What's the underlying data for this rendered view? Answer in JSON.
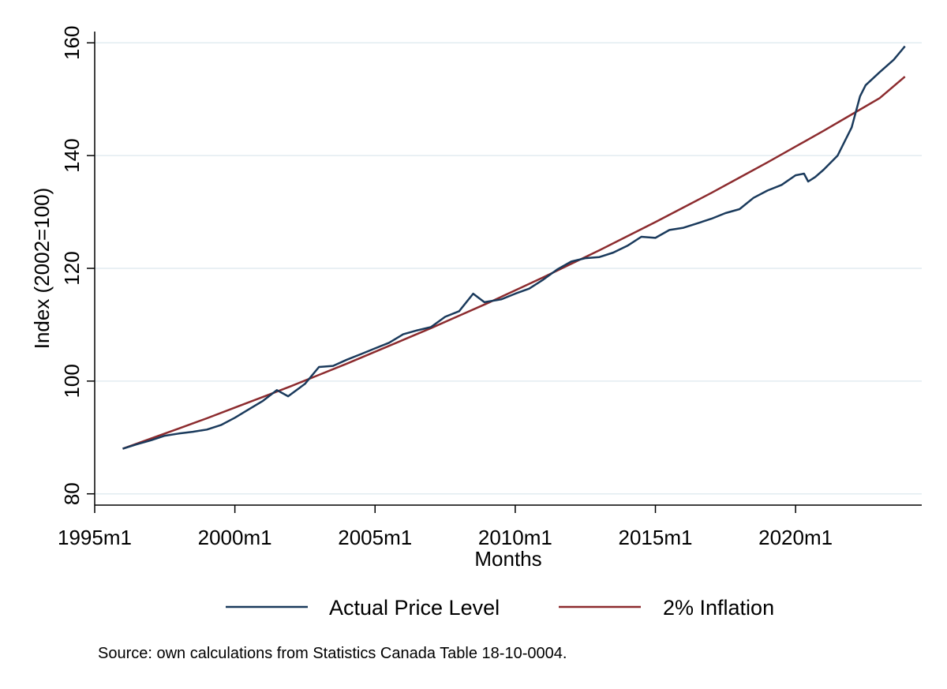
{
  "chart_data": {
    "type": "line",
    "xlabel": "Months",
    "ylabel": "Index (2002=100)",
    "xlim": [
      1995.0,
      2024.5
    ],
    "ylim": [
      78,
      162
    ],
    "x_ticks": [
      {
        "value": 1995.0,
        "label": "1995m1"
      },
      {
        "value": 2000.0,
        "label": "2000m1"
      },
      {
        "value": 2005.0,
        "label": "2005m1"
      },
      {
        "value": 2010.0,
        "label": "2010m1"
      },
      {
        "value": 2015.0,
        "label": "2015m1"
      },
      {
        "value": 2020.0,
        "label": "2020m1"
      }
    ],
    "y_ticks": [
      {
        "value": 80,
        "label": "80"
      },
      {
        "value": 100,
        "label": "100"
      },
      {
        "value": 120,
        "label": "120"
      },
      {
        "value": 140,
        "label": "140"
      },
      {
        "value": 160,
        "label": "160"
      }
    ],
    "grid": true,
    "legend_position": "bottom",
    "series": [
      {
        "name": "Actual Price Level",
        "color": "#1a3a5c",
        "points": [
          [
            1996.0,
            88.0
          ],
          [
            1996.5,
            88.8
          ],
          [
            1997.0,
            89.5
          ],
          [
            1997.5,
            90.3
          ],
          [
            1998.0,
            90.7
          ],
          [
            1998.5,
            91.0
          ],
          [
            1999.0,
            91.4
          ],
          [
            1999.5,
            92.2
          ],
          [
            2000.0,
            93.5
          ],
          [
            2000.5,
            95.0
          ],
          [
            2001.0,
            96.5
          ],
          [
            2001.5,
            98.4
          ],
          [
            2001.9,
            97.3
          ],
          [
            2002.5,
            99.5
          ],
          [
            2003.0,
            102.5
          ],
          [
            2003.5,
            102.7
          ],
          [
            2004.0,
            103.8
          ],
          [
            2004.5,
            104.8
          ],
          [
            2005.0,
            105.8
          ],
          [
            2005.5,
            106.8
          ],
          [
            2006.0,
            108.3
          ],
          [
            2006.5,
            109.0
          ],
          [
            2007.0,
            109.6
          ],
          [
            2007.5,
            111.4
          ],
          [
            2008.0,
            112.4
          ],
          [
            2008.5,
            115.5
          ],
          [
            2008.9,
            114.0
          ],
          [
            2009.5,
            114.5
          ],
          [
            2010.0,
            115.5
          ],
          [
            2010.5,
            116.4
          ],
          [
            2011.0,
            118.0
          ],
          [
            2011.5,
            119.8
          ],
          [
            2012.0,
            121.2
          ],
          [
            2012.5,
            121.8
          ],
          [
            2013.0,
            122.0
          ],
          [
            2013.5,
            122.8
          ],
          [
            2014.0,
            124.0
          ],
          [
            2014.5,
            125.6
          ],
          [
            2015.0,
            125.4
          ],
          [
            2015.5,
            126.8
          ],
          [
            2016.0,
            127.2
          ],
          [
            2016.5,
            128.0
          ],
          [
            2017.0,
            128.8
          ],
          [
            2017.5,
            129.8
          ],
          [
            2018.0,
            130.5
          ],
          [
            2018.5,
            132.5
          ],
          [
            2019.0,
            133.8
          ],
          [
            2019.5,
            134.8
          ],
          [
            2020.0,
            136.5
          ],
          [
            2020.3,
            136.8
          ],
          [
            2020.45,
            135.4
          ],
          [
            2020.7,
            136.2
          ],
          [
            2021.0,
            137.5
          ],
          [
            2021.5,
            140.0
          ],
          [
            2022.0,
            145.0
          ],
          [
            2022.3,
            150.5
          ],
          [
            2022.5,
            152.5
          ],
          [
            2023.0,
            154.8
          ],
          [
            2023.5,
            157.0
          ],
          [
            2023.75,
            158.5
          ],
          [
            2023.9,
            159.4
          ]
        ]
      },
      {
        "name": "2% Inflation",
        "color": "#8c2b2e",
        "points": [
          [
            1996.0,
            88.0
          ],
          [
            1997.0,
            89.8
          ],
          [
            1998.0,
            91.6
          ],
          [
            1999.0,
            93.4
          ],
          [
            2000.0,
            95.3
          ],
          [
            2001.0,
            97.2
          ],
          [
            2002.0,
            99.1
          ],
          [
            2003.0,
            101.1
          ],
          [
            2004.0,
            103.1
          ],
          [
            2005.0,
            105.2
          ],
          [
            2006.0,
            107.3
          ],
          [
            2007.0,
            109.4
          ],
          [
            2008.0,
            111.6
          ],
          [
            2009.0,
            113.8
          ],
          [
            2010.0,
            116.1
          ],
          [
            2011.0,
            118.4
          ],
          [
            2012.0,
            120.8
          ],
          [
            2013.0,
            123.2
          ],
          [
            2014.0,
            125.7
          ],
          [
            2015.0,
            128.2
          ],
          [
            2016.0,
            130.8
          ],
          [
            2017.0,
            133.4
          ],
          [
            2018.0,
            136.1
          ],
          [
            2019.0,
            138.8
          ],
          [
            2020.0,
            141.6
          ],
          [
            2021.0,
            144.4
          ],
          [
            2022.0,
            147.3
          ],
          [
            2023.0,
            150.2
          ],
          [
            2023.9,
            154.0
          ]
        ]
      }
    ],
    "note": "Source: own calculations from Statistics Canada Table 18-10-0004."
  }
}
